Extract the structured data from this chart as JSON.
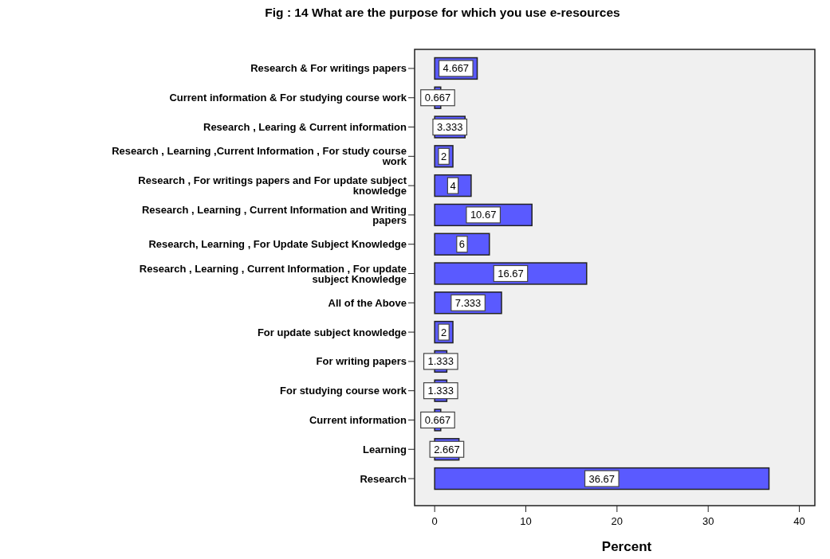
{
  "chart_data": {
    "type": "bar",
    "orientation": "horizontal",
    "title": "Fig : 14  What are the purpose for which you use e-resources",
    "categories": [
      "Research & For writings papers",
      "Current information & For studying course work",
      "Research , Learing & Current information",
      "Research , Learning ,Current Information , For study course work",
      "Research , For writings papers and For update subject knowledge",
      "Research , Learning , Current Information and Writing papers",
      "Research, Learning , For Update Subject Knowledge",
      "Research , Learning , Current Information , For update subject Knowledge",
      "All of the Above",
      "For update subject knowledge",
      "For writing papers",
      "For studying course work",
      "Current information",
      "Learning",
      "Research"
    ],
    "values": [
      4.667,
      0.667,
      3.333,
      2,
      4,
      10.67,
      6,
      16.67,
      7.333,
      2,
      1.333,
      1.333,
      0.667,
      2.667,
      36.67
    ],
    "color": "#5a5aff",
    "xlim": [
      -2.2,
      41.7
    ],
    "xticks": [
      0,
      10,
      20,
      30,
      40
    ],
    "xlabel": "Percent",
    "data_labels": true,
    "grid": false
  }
}
